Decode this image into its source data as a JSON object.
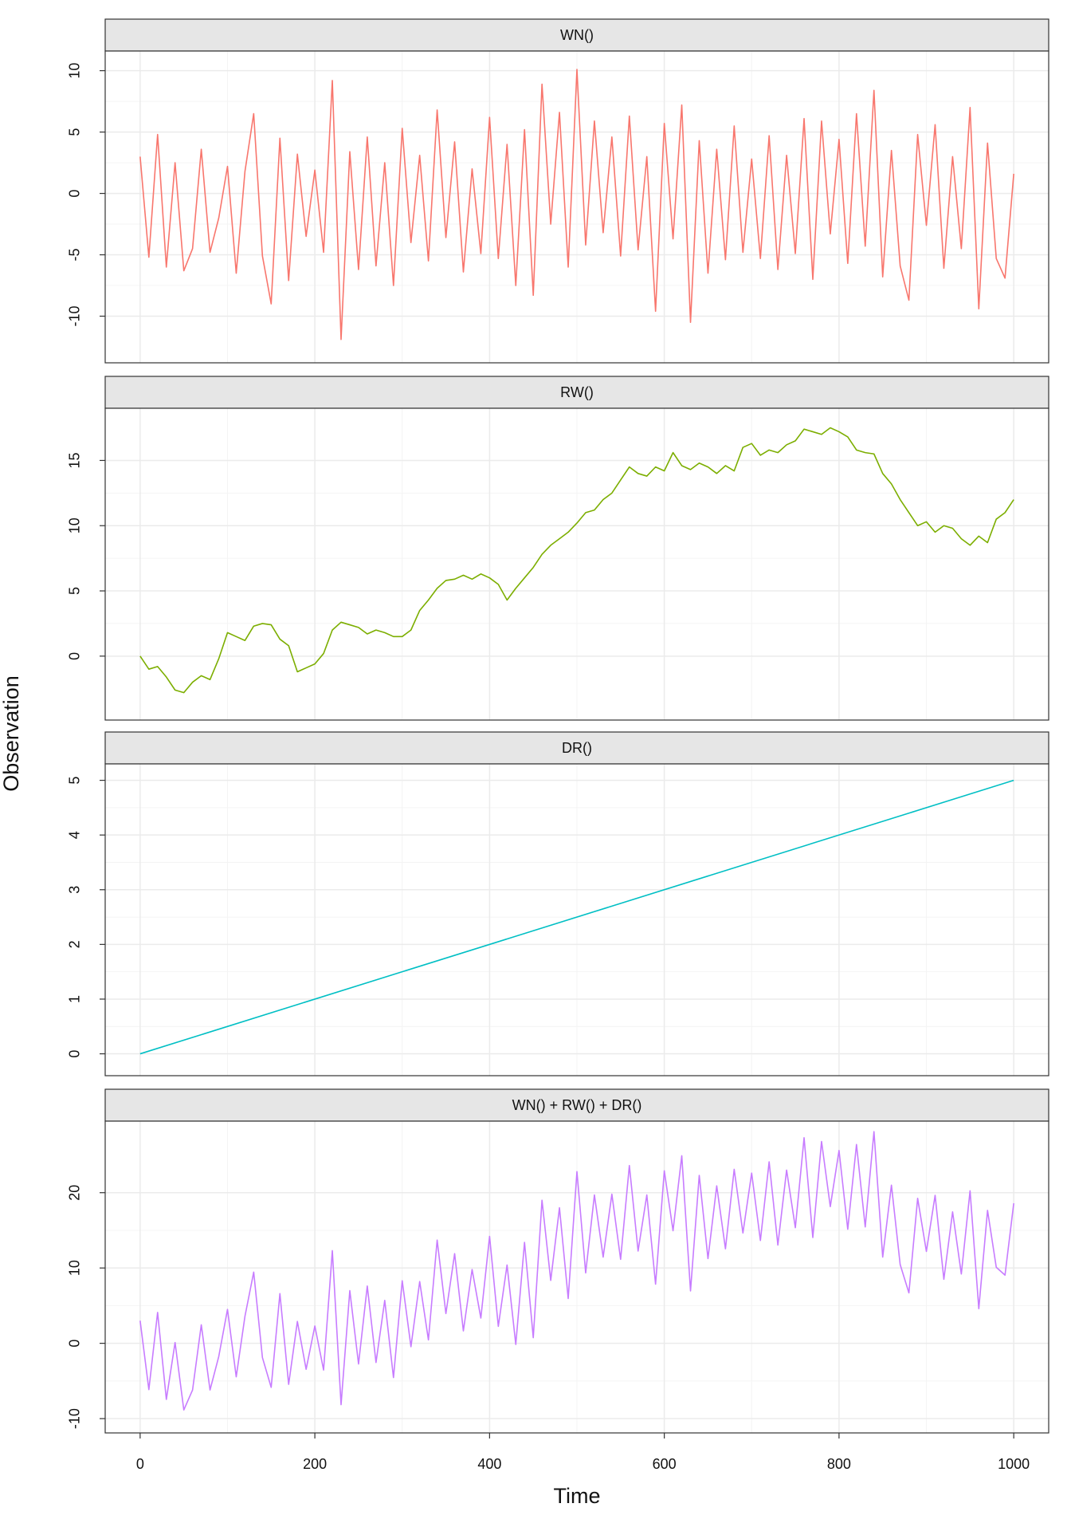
{
  "chart_data": [
    {
      "type": "line",
      "title": "WN()",
      "color": "#F8766D",
      "xlim": [
        -40,
        1040
      ],
      "xticks": [
        0,
        200,
        400,
        600,
        800,
        1000
      ],
      "ylim": [
        -13.8,
        11.6
      ],
      "yticks": [
        -10,
        -5,
        0,
        5,
        10
      ],
      "grid": true,
      "x": [
        0,
        10,
        20,
        30,
        40,
        50,
        60,
        70,
        80,
        90,
        100,
        110,
        120,
        130,
        140,
        150,
        160,
        170,
        180,
        190,
        200,
        210,
        220,
        230,
        240,
        250,
        260,
        270,
        280,
        290,
        300,
        310,
        320,
        330,
        340,
        350,
        360,
        370,
        380,
        390,
        400,
        410,
        420,
        430,
        440,
        450,
        460,
        470,
        480,
        490,
        500,
        510,
        520,
        530,
        540,
        550,
        560,
        570,
        580,
        590,
        600,
        610,
        620,
        630,
        640,
        650,
        660,
        670,
        680,
        690,
        700,
        710,
        720,
        730,
        740,
        750,
        760,
        770,
        780,
        790,
        800,
        810,
        820,
        830,
        840,
        850,
        860,
        870,
        880,
        890,
        900,
        910,
        920,
        930,
        940,
        950,
        960,
        970,
        980,
        990,
        1000
      ],
      "values": [
        3,
        -5.2,
        4.8,
        -6,
        2.5,
        -6.3,
        -4.5,
        3.6,
        -4.8,
        -2,
        2.2,
        -6.5,
        1.8,
        6.5,
        -5.1,
        -9,
        4.5,
        -7.1,
        3.2,
        -3.5,
        1.9,
        -4.8,
        9.2,
        -11.9,
        3.4,
        -6.2,
        4.6,
        -5.9,
        2.5,
        -7.5,
        5.3,
        -4,
        3.1,
        -5.5,
        6.8,
        -3.6,
        4.2,
        -6.4,
        2,
        -4.9,
        6.2,
        -5.3,
        4,
        -7.5,
        5.2,
        -8.3,
        8.9,
        -2.5,
        6.6,
        -6,
        10.1,
        -4.2,
        5.9,
        -3.2,
        4.6,
        -5.1,
        6.3,
        -4.6,
        3,
        -9.6,
        5.7,
        -3.7,
        7.2,
        -10.5,
        4.3,
        -6.5,
        3.6,
        -5.4,
        5.5,
        -4.8,
        2.8,
        -5.3,
        4.7,
        -6.2,
        3.1,
        -4.9,
        6.1,
        -7,
        5.9,
        -3.3,
        4.4,
        -5.7,
        6.5,
        -4.3,
        8.4,
        -6.8,
        3.5,
        -5.9,
        -8.7,
        4.8,
        -2.6,
        5.6,
        -6.1,
        3,
        -4.5,
        7,
        -9.4,
        4.1,
        -5.3,
        -6.9,
        1.6
      ]
    },
    {
      "type": "line",
      "title": "RW()",
      "color": "#7CAE00",
      "xlim": [
        -40,
        1040
      ],
      "xticks": [
        0,
        200,
        400,
        600,
        800,
        1000
      ],
      "ylim": [
        -4.9,
        19.0
      ],
      "yticks": [
        0,
        5,
        10,
        15
      ],
      "grid": true,
      "x": [
        0,
        10,
        20,
        30,
        40,
        50,
        60,
        70,
        80,
        90,
        100,
        110,
        120,
        130,
        140,
        150,
        160,
        170,
        180,
        190,
        200,
        210,
        220,
        230,
        240,
        250,
        260,
        270,
        280,
        290,
        300,
        310,
        320,
        330,
        340,
        350,
        360,
        370,
        380,
        390,
        400,
        410,
        420,
        430,
        440,
        450,
        460,
        470,
        480,
        490,
        500,
        510,
        520,
        530,
        540,
        550,
        560,
        570,
        580,
        590,
        600,
        610,
        620,
        630,
        640,
        650,
        660,
        670,
        680,
        690,
        700,
        710,
        720,
        730,
        740,
        750,
        760,
        770,
        780,
        790,
        800,
        810,
        820,
        830,
        840,
        850,
        860,
        870,
        880,
        890,
        900,
        910,
        920,
        930,
        940,
        950,
        960,
        970,
        980,
        990,
        1000
      ],
      "values": [
        0,
        -1,
        -0.8,
        -1.6,
        -2.6,
        -2.8,
        -2.0,
        -1.5,
        -1.8,
        -0.2,
        1.8,
        1.5,
        1.2,
        2.3,
        2.5,
        2.4,
        1.3,
        0.8,
        -1.2,
        -0.9,
        -0.6,
        0.2,
        2.0,
        2.6,
        2.4,
        2.2,
        1.7,
        2.0,
        1.8,
        1.5,
        1.5,
        2.0,
        3.5,
        4.3,
        5.2,
        5.8,
        5.9,
        6.2,
        5.9,
        6.3,
        6.0,
        5.5,
        4.3,
        5.2,
        6.0,
        6.8,
        7.8,
        8.5,
        9.0,
        9.5,
        10.2,
        11.0,
        11.2,
        12.0,
        12.5,
        13.5,
        14.5,
        14.0,
        13.8,
        14.5,
        14.2,
        15.6,
        14.6,
        14.3,
        14.8,
        14.5,
        14.0,
        14.6,
        14.2,
        16.0,
        16.3,
        15.4,
        15.8,
        15.6,
        16.2,
        16.5,
        17.4,
        17.2,
        17.0,
        17.5,
        17.2,
        16.8,
        15.8,
        15.6,
        15.5,
        14.0,
        13.2,
        12.0,
        11.0,
        10.0,
        10.3,
        9.5,
        10.0,
        9.8,
        9.0,
        8.5,
        9.2,
        8.7,
        10.5,
        11.0,
        12.0
      ]
    },
    {
      "type": "line",
      "title": "DR()",
      "color": "#00BFC4",
      "xlim": [
        -40,
        1040
      ],
      "xticks": [
        0,
        200,
        400,
        600,
        800,
        1000
      ],
      "ylim": [
        -0.4,
        5.3
      ],
      "yticks": [
        0,
        1,
        2,
        3,
        4,
        5
      ],
      "grid": true,
      "x": [
        0,
        1000
      ],
      "values": [
        0,
        5
      ]
    },
    {
      "type": "line",
      "title": "WN() + RW() + DR()",
      "color": "#C77CFF",
      "xlim": [
        -40,
        1040
      ],
      "xticks": [
        0,
        200,
        400,
        600,
        800,
        1000
      ],
      "ylim": [
        -11.9,
        29.5
      ],
      "yticks": [
        -10,
        0,
        10,
        20
      ],
      "grid": true,
      "x": [
        0,
        10,
        20,
        30,
        40,
        50,
        60,
        70,
        80,
        90,
        100,
        110,
        120,
        130,
        140,
        150,
        160,
        170,
        180,
        190,
        200,
        210,
        220,
        230,
        240,
        250,
        260,
        270,
        280,
        290,
        300,
        310,
        320,
        330,
        340,
        350,
        360,
        370,
        380,
        390,
        400,
        410,
        420,
        430,
        440,
        450,
        460,
        470,
        480,
        490,
        500,
        510,
        520,
        530,
        540,
        550,
        560,
        570,
        580,
        590,
        600,
        610,
        620,
        630,
        640,
        650,
        660,
        670,
        680,
        690,
        700,
        710,
        720,
        730,
        740,
        750,
        760,
        770,
        780,
        790,
        800,
        810,
        820,
        830,
        840,
        850,
        860,
        870,
        880,
        890,
        900,
        910,
        920,
        930,
        940,
        950,
        960,
        970,
        980,
        990,
        1000
      ],
      "values": [
        3,
        -6.15,
        4.1,
        -7.45,
        0.1,
        -8.85,
        -6.2,
        2.45,
        -6.2,
        -1.75,
        4.5,
        -4.45,
        3.6,
        9.45,
        -1.9,
        -5.85,
        6.6,
        -5.45,
        2.9,
        -3.45,
        2.3,
        -3.55,
        12.3,
        -8.15,
        7,
        -2.75,
        7.6,
        -2.55,
        5.7,
        -4.55,
        8.3,
        -0.45,
        8.2,
        0.45,
        13.7,
        3.95,
        11.9,
        1.65,
        9.8,
        3.35,
        14.2,
        2.25,
        10.4,
        -0.15,
        13.4,
        0.75,
        19,
        8.35,
        18,
        5.95,
        22.8,
        9.35,
        19.7,
        11.45,
        19.8,
        11.15,
        23.6,
        12.25,
        19.7,
        7.85,
        22.9,
        14.95,
        24.9,
        6.95,
        22.3,
        11.25,
        20.9,
        12.55,
        23.1,
        14.65,
        22.6,
        13.65,
        24.1,
        13.05,
        23,
        15.35,
        27.3,
        14.05,
        26.8,
        18.15,
        25.6,
        15.15,
        26.4,
        15.45,
        28.1,
        11.45,
        21,
        10.45,
        6.7,
        19.25,
        12.2,
        19.65,
        8.5,
        17.45,
        9.2,
        20.25,
        4.6,
        17.65,
        10.1,
        9.05,
        18.6
      ]
    }
  ],
  "xlabel": "Time",
  "ylabel": "Observation"
}
